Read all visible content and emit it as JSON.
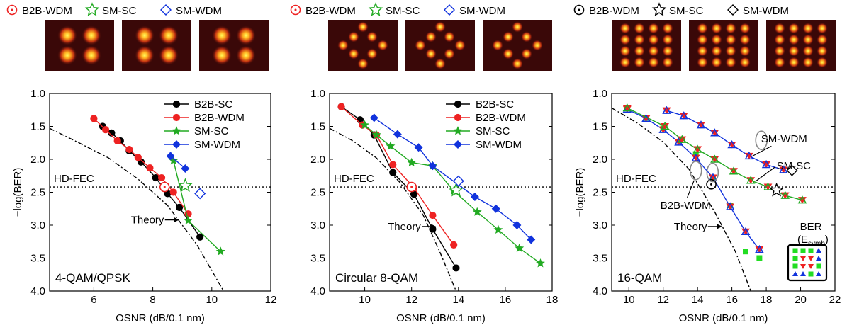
{
  "chart_data": [
    {
      "type": "line",
      "panel_label": "4-QAM/QPSK",
      "xlabel": "OSNR (dB/0.1 nm)",
      "ylabel": "−log(BER)",
      "xlim": [
        4.5,
        12
      ],
      "ylim": [
        4.0,
        1.0
      ],
      "y_inverted": true,
      "xticks": [
        6,
        8,
        10,
        12
      ],
      "yticks": [
        1.0,
        1.5,
        2.0,
        2.5,
        3.0,
        3.5,
        4.0
      ],
      "top_legend": [
        "B2B-WDM",
        "SM-SC",
        "SM-WDM"
      ],
      "top_legend_markers": [
        "circle-dot",
        "star",
        "diamond"
      ],
      "legend": [
        "B2B-SC",
        "B2B-WDM",
        "SM-SC",
        "SM-WDM"
      ],
      "legend_position": "top-right",
      "hd_fec": {
        "label": "HD-FEC",
        "y": 2.42
      },
      "theory_label": "Theory",
      "series": [
        {
          "name": "B2B-SC",
          "color": "#000000",
          "marker": "circle",
          "x": [
            6.3,
            6.6,
            6.9,
            7.2,
            7.6,
            8.1,
            8.5,
            8.9,
            9.6
          ],
          "y": [
            1.5,
            1.6,
            1.72,
            1.87,
            2.04,
            2.28,
            2.52,
            2.73,
            3.18
          ]
        },
        {
          "name": "B2B-WDM",
          "color": "#ee2222",
          "marker": "circle",
          "x": [
            6.0,
            6.4,
            6.8,
            7.2,
            7.5,
            7.9,
            8.3,
            8.7,
            9.2
          ],
          "y": [
            1.38,
            1.55,
            1.72,
            1.85,
            1.97,
            2.13,
            2.28,
            2.5,
            2.83
          ]
        },
        {
          "name": "SM-SC",
          "color": "#22aa22",
          "marker": "star",
          "x": [
            8.7,
            9.2,
            10.3
          ],
          "y": [
            2.02,
            2.93,
            3.4
          ]
        },
        {
          "name": "SM-WDM",
          "color": "#1133dd",
          "marker": "diamond",
          "x": [
            8.6,
            9.1
          ],
          "y": [
            1.95,
            2.14
          ]
        }
      ],
      "fec_markers": [
        {
          "color": "#ee2222",
          "marker": "circle-dot",
          "x": 8.4,
          "y": 2.42
        },
        {
          "color": "#22aa22",
          "marker": "star",
          "x": 9.1,
          "y": 2.4
        },
        {
          "color": "#1133dd",
          "marker": "diamond",
          "x": 9.6,
          "y": 2.52
        }
      ],
      "theory": {
        "x": [
          4.5,
          5.5,
          6.5,
          7.5,
          8.5,
          9.5,
          10.4
        ],
        "y": [
          1.53,
          1.75,
          1.98,
          2.3,
          2.7,
          3.3,
          4.0
        ]
      },
      "theory_arrow": {
        "x": 8.7,
        "y": 2.92
      }
    },
    {
      "type": "line",
      "panel_label": "Circular 8-QAM",
      "xlabel": "OSNR (dB/0.1 nm)",
      "ylabel": "",
      "xlim": [
        8.5,
        18
      ],
      "ylim": [
        4.0,
        1.0
      ],
      "y_inverted": true,
      "xticks": [
        10,
        12,
        14,
        16,
        18
      ],
      "yticks": [
        1.0,
        1.5,
        2.0,
        2.5,
        3.0,
        3.5,
        4.0
      ],
      "top_legend": [
        "B2B-WDM",
        "SM-SC",
        "SM-WDM"
      ],
      "top_legend_markers": [
        "circle-dot",
        "star",
        "diamond"
      ],
      "legend": [
        "B2B-SC",
        "B2B-WDM",
        "SM-SC",
        "SM-WDM"
      ],
      "legend_position": "top-right",
      "hd_fec": {
        "label": "HD-FEC",
        "y": 2.42
      },
      "theory_label": "Theory",
      "series": [
        {
          "name": "B2B-SC",
          "color": "#000000",
          "marker": "circle",
          "x": [
            9.0,
            9.8,
            10.4,
            11.2,
            12.1,
            12.9,
            13.9
          ],
          "y": [
            1.2,
            1.4,
            1.63,
            2.2,
            2.53,
            3.06,
            3.65
          ]
        },
        {
          "name": "B2B-WDM",
          "color": "#ee2222",
          "marker": "circle",
          "x": [
            9.0,
            9.9,
            10.5,
            11.2,
            12.1,
            12.9,
            13.8
          ],
          "y": [
            1.2,
            1.48,
            1.63,
            2.08,
            2.43,
            2.85,
            3.3
          ]
        },
        {
          "name": "SM-SC",
          "color": "#22aa22",
          "marker": "star",
          "x": [
            10.0,
            10.5,
            11.1,
            12.0,
            12.9,
            13.8,
            14.8,
            15.7,
            16.6,
            17.5
          ],
          "y": [
            1.48,
            1.63,
            1.8,
            2.05,
            2.1,
            2.48,
            2.8,
            3.07,
            3.35,
            3.58
          ]
        },
        {
          "name": "SM-WDM",
          "color": "#1133dd",
          "marker": "diamond",
          "x": [
            10.4,
            11.4,
            12.3,
            12.9,
            14.7,
            15.6,
            16.5,
            17.1
          ],
          "y": [
            1.37,
            1.62,
            1.82,
            2.1,
            2.57,
            2.75,
            3.0,
            3.22
          ]
        }
      ],
      "fec_markers": [
        {
          "color": "#ee2222",
          "marker": "circle-dot",
          "x": 12.0,
          "y": 2.42
        },
        {
          "color": "#22aa22",
          "marker": "star",
          "x": 13.9,
          "y": 2.47
        },
        {
          "color": "#1133dd",
          "marker": "diamond",
          "x": 14.0,
          "y": 2.33
        }
      ],
      "theory": {
        "x": [
          8.5,
          9.5,
          10.5,
          11.5,
          12.5,
          13.2,
          13.9
        ],
        "y": [
          1.53,
          1.72,
          1.98,
          2.35,
          2.85,
          3.4,
          4.0
        ]
      },
      "theory_arrow": {
        "x": 12.8,
        "y": 3.02
      }
    },
    {
      "type": "line",
      "panel_label": "16-QAM",
      "xlabel": "OSNR (dB/0.1 nm)",
      "ylabel": "−log(BER)",
      "xlim": [
        9,
        22
      ],
      "ylim": [
        4.0,
        1.0
      ],
      "y_inverted": true,
      "xticks": [
        10,
        12,
        14,
        16,
        18,
        20,
        22
      ],
      "yticks": [
        1.0,
        1.5,
        2.0,
        2.5,
        3.0,
        3.5,
        4.0
      ],
      "top_legend": [
        "B2B-WDM",
        "SM-SC",
        "SM-WDM"
      ],
      "top_legend_markers": [
        "circle-dot",
        "star",
        "diamond"
      ],
      "hd_fec": {
        "label": "HD-FEC",
        "y": 2.42
      },
      "theory_label": "Theory",
      "annotations": [
        "SM-WDM",
        "SM-SC",
        "B2B-WDM"
      ],
      "inset_title": "BER",
      "inset_subtitle": "(E",
      "inset_subscript": "symb",
      "inset_close": ")",
      "series": [
        {
          "name": "B2B-WDM",
          "color": "#1133dd",
          "marker": "tri-mix",
          "x": [
            9.9,
            11.0,
            12.0,
            12.9,
            13.9,
            14.9,
            15.9,
            16.8,
            17.6
          ],
          "y": [
            1.24,
            1.38,
            1.55,
            1.74,
            1.98,
            2.28,
            2.72,
            3.1,
            3.37
          ]
        },
        {
          "name": "SM-SC",
          "color": "#22aa22",
          "marker": "tri-mix",
          "x": [
            9.9,
            12.1,
            13.1,
            14.0,
            15.0,
            16.1,
            17.1,
            18.1,
            19.1,
            20.1
          ],
          "y": [
            1.22,
            1.5,
            1.7,
            1.85,
            2.0,
            2.18,
            2.32,
            2.42,
            2.55,
            2.62
          ]
        },
        {
          "name": "SM-WDM",
          "color": "#1133dd",
          "marker": "tri-mix",
          "x": [
            12.2,
            13.2,
            14.2,
            15.0,
            16.0,
            17.0,
            18.0,
            19.0
          ],
          "y": [
            1.26,
            1.34,
            1.48,
            1.6,
            1.78,
            1.95,
            2.08,
            2.16
          ]
        }
      ],
      "green_squares": {
        "x": [
          9.9,
          11.0,
          12.0,
          13.0,
          13.9,
          14.9,
          15.9,
          16.8,
          17.6
        ],
        "y": [
          1.22,
          1.37,
          1.53,
          1.71,
          1.92,
          2.3,
          2.7,
          3.4,
          3.5
        ]
      },
      "fec_markers": [
        {
          "color": "#000000",
          "marker": "circle-dot",
          "x": 14.8,
          "y": 2.38
        },
        {
          "color": "#000000",
          "marker": "star",
          "x": 18.6,
          "y": 2.47
        },
        {
          "color": "#000000",
          "marker": "diamond",
          "x": 19.5,
          "y": 2.17
        }
      ],
      "theory": {
        "x": [
          9.0,
          10.5,
          12.0,
          13.5,
          15.0,
          16.2,
          17.1
        ],
        "y": [
          1.22,
          1.45,
          1.74,
          2.15,
          2.8,
          3.4,
          4.0
        ]
      },
      "theory_arrow": {
        "x": 15.1,
        "y": 3.02
      }
    }
  ]
}
